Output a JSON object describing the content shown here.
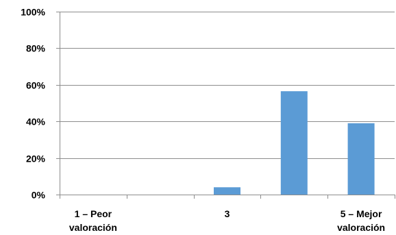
{
  "chart_data": {
    "type": "bar",
    "categories": [
      [
        "1 – Peor",
        "valoración"
      ],
      [
        ""
      ],
      [
        "3"
      ],
      [
        ""
      ],
      [
        "5 – Mejor",
        "valoración"
      ]
    ],
    "values": [
      0,
      0,
      4,
      56.5,
      39
    ],
    "y_ticks": [
      "0%",
      "20%",
      "40%",
      "60%",
      "80%",
      "100%"
    ],
    "ylim": [
      0,
      100
    ],
    "grid": true,
    "legend": "none",
    "bar_color": "#5b9bd5",
    "grid_color": "#8c8c8c",
    "axis_color": "#8c8c8c"
  }
}
